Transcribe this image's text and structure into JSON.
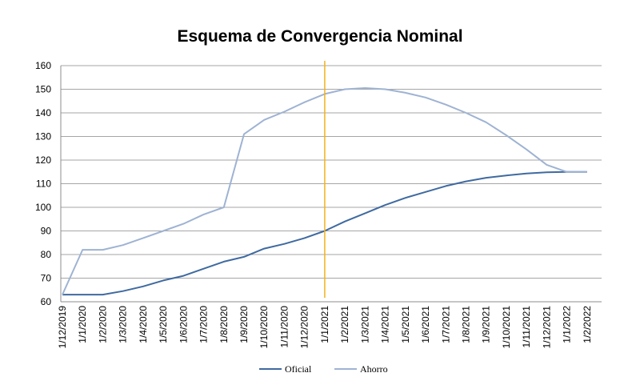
{
  "chart_data": {
    "type": "line",
    "title": "Esquema de Convergencia Nominal",
    "xlabel": "",
    "ylabel": "",
    "ylim": [
      60,
      160
    ],
    "yticks": [
      60,
      70,
      80,
      90,
      100,
      110,
      120,
      130,
      140,
      150,
      160
    ],
    "grid": "horizontal",
    "legend_position": "bottom",
    "x_ticks": [
      "1/12/2019",
      "1/1/2020",
      "1/2/2020",
      "1/3/2020",
      "1/4/2020",
      "1/5/2020",
      "1/6/2020",
      "1/7/2020",
      "1/8/2020",
      "1/9/2020",
      "1/10/2020",
      "1/11/2020",
      "1/12/2020",
      "1/1/2021",
      "1/2/2021",
      "1/3/2021",
      "1/4/2021",
      "1/5/2021",
      "1/6/2021",
      "1/7/2021",
      "1/8/2021",
      "1/9/2021",
      "1/10/2021",
      "1/11/2021",
      "1/12/2021",
      "1/1/2022",
      "1/2/2022"
    ],
    "vertical_marker": {
      "x": "1/1/2021",
      "color": "#f5b21c"
    },
    "series": [
      {
        "name": "Oficial",
        "color": "#3f6aa0",
        "x": [
          "1/12/2019",
          "1/1/2020",
          "1/2/2020",
          "1/3/2020",
          "1/4/2020",
          "1/5/2020",
          "1/6/2020",
          "1/7/2020",
          "1/8/2020",
          "1/9/2020",
          "1/10/2020",
          "1/11/2020",
          "1/12/2020",
          "1/1/2021",
          "1/2/2021",
          "1/3/2021",
          "1/4/2021",
          "1/5/2021",
          "1/6/2021",
          "1/7/2021",
          "1/8/2021",
          "1/9/2021",
          "1/10/2021",
          "1/11/2021",
          "1/12/2021",
          "1/1/2022",
          "1/2/2022"
        ],
        "values": [
          63,
          63,
          63,
          64.5,
          66.5,
          69,
          71,
          74,
          77,
          79,
          82.5,
          84.5,
          87,
          90,
          94,
          97.5,
          101,
          104,
          106.5,
          109,
          111,
          112.5,
          113.5,
          114.3,
          114.8,
          115,
          115
        ]
      },
      {
        "name": "Ahorro",
        "color": "#9eb3d3",
        "x": [
          "1/12/2019",
          "1/1/2020",
          "1/2/2020",
          "1/3/2020",
          "1/4/2020",
          "1/5/2020",
          "1/6/2020",
          "1/7/2020",
          "1/8/2020",
          "1/9/2020",
          "1/10/2020",
          "1/11/2020",
          "1/12/2020",
          "1/1/2021",
          "1/2/2021",
          "1/3/2021",
          "1/4/2021",
          "1/5/2021",
          "1/6/2021",
          "1/7/2021",
          "1/8/2021",
          "1/9/2021",
          "1/10/2021",
          "1/11/2021",
          "1/12/2021",
          "1/1/2022",
          "1/2/2022"
        ],
        "values": [
          63,
          82,
          82,
          84,
          87,
          90,
          93,
          97,
          100,
          131,
          137,
          140.5,
          144.5,
          148,
          150,
          150.5,
          150,
          148.5,
          146.5,
          143.5,
          140,
          136,
          130.5,
          124.5,
          118,
          115,
          115
        ]
      }
    ]
  }
}
